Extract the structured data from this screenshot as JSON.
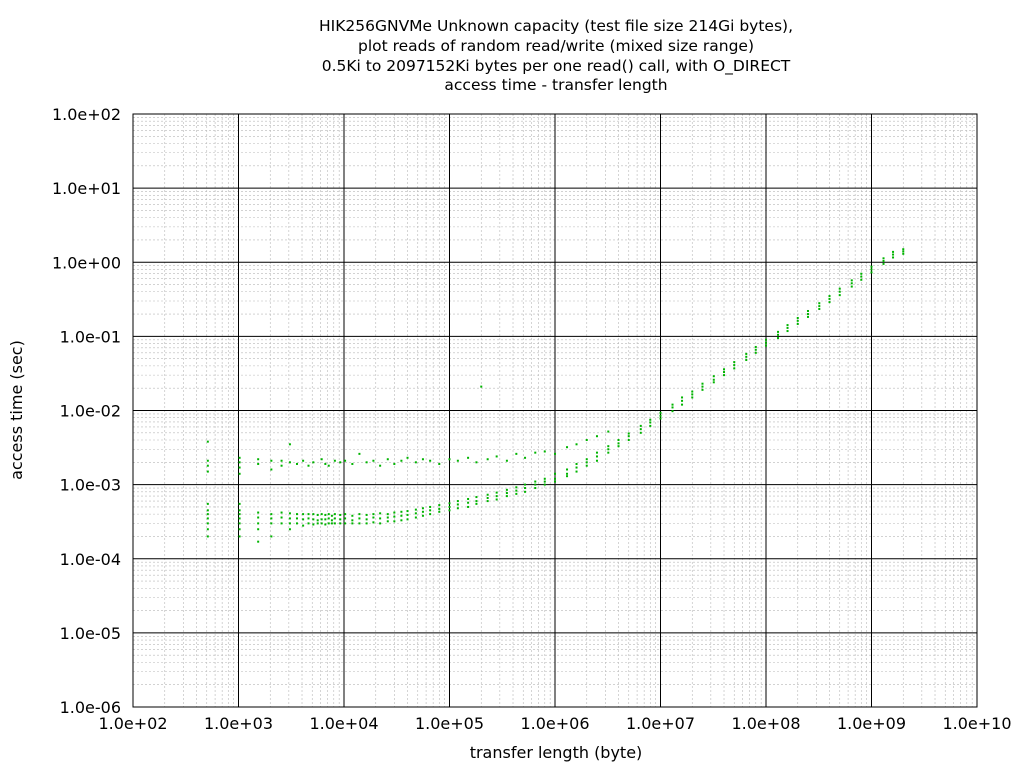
{
  "chart_data": {
    "type": "scatter",
    "title_lines": [
      "HIK256GNVMe Unknown capacity (test file size 214Gi bytes),",
      "plot reads of random read/write (mixed size range)",
      "0.5Ki to 2097152Ki bytes per one read() call, with O_DIRECT",
      "access time - transfer length"
    ],
    "xlabel": "transfer length (byte)",
    "ylabel": "access time (sec)",
    "x_scale": "log",
    "y_scale": "log",
    "xlim": [
      100,
      10000000000
    ],
    "ylim": [
      1e-06,
      100
    ],
    "x_tick_labels": [
      "1.0e+02",
      "1.0e+03",
      "1.0e+04",
      "1.0e+05",
      "1.0e+06",
      "1.0e+07",
      "1.0e+08",
      "1.0e+09",
      "1.0e+10"
    ],
    "y_tick_labels": [
      "1.0e-06",
      "1.0e-05",
      "1.0e-04",
      "1.0e-03",
      "1.0e-02",
      "1.0e-01",
      "1.0e+00",
      "1.0e+01",
      "1.0e+02"
    ],
    "grid": true,
    "marker_color": "#00b400",
    "series": [
      {
        "points": [
          [
            512,
            0.00045
          ],
          [
            512,
            0.0004
          ],
          [
            512,
            0.00035
          ],
          [
            512,
            0.0003
          ],
          [
            512,
            0.00025
          ],
          [
            512,
            0.0002
          ],
          [
            512,
            0.0021
          ],
          [
            512,
            0.0018
          ],
          [
            512,
            0.0015
          ],
          [
            512,
            0.0038
          ],
          [
            512,
            0.00055
          ],
          [
            1024,
            0.00045
          ],
          [
            1024,
            0.0004
          ],
          [
            1024,
            0.00035
          ],
          [
            1024,
            0.0003
          ],
          [
            1024,
            0.00025
          ],
          [
            1024,
            0.0002
          ],
          [
            1024,
            0.0023
          ],
          [
            1024,
            0.002
          ],
          [
            1024,
            0.0017
          ],
          [
            1024,
            0.0014
          ],
          [
            1024,
            0.00055
          ],
          [
            1536,
            0.00042
          ],
          [
            1536,
            0.00036
          ],
          [
            1536,
            0.0003
          ],
          [
            1536,
            0.00025
          ],
          [
            1536,
            0.0022
          ],
          [
            1536,
            0.0019
          ],
          [
            1536,
            0.00017
          ],
          [
            2048,
            0.0004
          ],
          [
            2048,
            0.00035
          ],
          [
            2048,
            0.0003
          ],
          [
            2048,
            0.0002
          ],
          [
            2048,
            0.0021
          ],
          [
            2048,
            0.0016
          ],
          [
            2560,
            0.00042
          ],
          [
            2560,
            0.00036
          ],
          [
            2560,
            0.0003
          ],
          [
            2560,
            0.0021
          ],
          [
            2560,
            0.0018
          ],
          [
            3072,
            0.00041
          ],
          [
            3072,
            0.00035
          ],
          [
            3072,
            0.0003
          ],
          [
            3072,
            0.00025
          ],
          [
            3072,
            0.0035
          ],
          [
            3072,
            0.002
          ],
          [
            3584,
            0.0004
          ],
          [
            3584,
            0.00035
          ],
          [
            3584,
            0.0003
          ],
          [
            3584,
            0.0019
          ],
          [
            4096,
            0.0004
          ],
          [
            4096,
            0.00034
          ],
          [
            4096,
            0.00028
          ],
          [
            4096,
            0.0021
          ],
          [
            4608,
            0.0004
          ],
          [
            4608,
            0.00035
          ],
          [
            4608,
            0.0003
          ],
          [
            4608,
            0.0018
          ],
          [
            5120,
            0.0004
          ],
          [
            5120,
            0.00034
          ],
          [
            5120,
            0.00029
          ],
          [
            5120,
            0.002
          ],
          [
            5632,
            0.00039
          ],
          [
            5632,
            0.00033
          ],
          [
            5632,
            0.0003
          ],
          [
            6144,
            0.0004
          ],
          [
            6144,
            0.00034
          ],
          [
            6144,
            0.0003
          ],
          [
            6144,
            0.0022
          ],
          [
            6656,
            0.00039
          ],
          [
            6656,
            0.00034
          ],
          [
            6656,
            0.00029
          ],
          [
            6656,
            0.0019
          ],
          [
            7168,
            0.0004
          ],
          [
            7168,
            0.00035
          ],
          [
            7168,
            0.0003
          ],
          [
            7168,
            0.0018
          ],
          [
            7680,
            0.00038
          ],
          [
            7680,
            0.00033
          ],
          [
            7680,
            0.0003
          ],
          [
            8192,
            0.0004
          ],
          [
            8192,
            0.00035
          ],
          [
            8192,
            0.0003
          ],
          [
            8192,
            0.0021
          ],
          [
            9216,
            0.00039
          ],
          [
            9216,
            0.00034
          ],
          [
            9216,
            0.0003
          ],
          [
            9216,
            0.002
          ],
          [
            10240,
            0.0004
          ],
          [
            10240,
            0.00035
          ],
          [
            10240,
            0.0003
          ],
          [
            10240,
            0.0021
          ],
          [
            12000,
            0.00038
          ],
          [
            12000,
            0.00033
          ],
          [
            12000,
            0.0003
          ],
          [
            12000,
            0.0019
          ],
          [
            14000,
            0.0004
          ],
          [
            14000,
            0.00035
          ],
          [
            14000,
            0.0003
          ],
          [
            14000,
            0.0026
          ],
          [
            16384,
            0.00039
          ],
          [
            16384,
            0.00034
          ],
          [
            16384,
            0.0003
          ],
          [
            16384,
            0.002
          ],
          [
            19000,
            0.0004
          ],
          [
            19000,
            0.00036
          ],
          [
            19000,
            0.00031
          ],
          [
            19000,
            0.0021
          ],
          [
            22000,
            0.00041
          ],
          [
            22000,
            0.00035
          ],
          [
            22000,
            0.0003
          ],
          [
            22000,
            0.0018
          ],
          [
            26000,
            0.0004
          ],
          [
            26000,
            0.00036
          ],
          [
            26000,
            0.00032
          ],
          [
            26000,
            0.0022
          ],
          [
            30000,
            0.00042
          ],
          [
            30000,
            0.00037
          ],
          [
            30000,
            0.00032
          ],
          [
            30000,
            0.0019
          ],
          [
            35000,
            0.00043
          ],
          [
            35000,
            0.00038
          ],
          [
            35000,
            0.00033
          ],
          [
            35000,
            0.0021
          ],
          [
            40000,
            0.00044
          ],
          [
            40000,
            0.00039
          ],
          [
            40000,
            0.00034
          ],
          [
            40000,
            0.0023
          ],
          [
            48000,
            0.00046
          ],
          [
            48000,
            0.00041
          ],
          [
            48000,
            0.00036
          ],
          [
            48000,
            0.002
          ],
          [
            56000,
            0.00048
          ],
          [
            56000,
            0.00043
          ],
          [
            56000,
            0.00038
          ],
          [
            56000,
            0.0022
          ],
          [
            65536,
            0.0005
          ],
          [
            65536,
            0.00045
          ],
          [
            65536,
            0.0004
          ],
          [
            65536,
            0.0021
          ],
          [
            80000,
            0.00053
          ],
          [
            80000,
            0.00047
          ],
          [
            80000,
            0.00043
          ],
          [
            80000,
            0.0019
          ],
          [
            100000,
            0.00056
          ],
          [
            100000,
            0.0005
          ],
          [
            100000,
            0.00045
          ],
          [
            100000,
            0.0022
          ],
          [
            120000,
            0.0006
          ],
          [
            120000,
            0.00054
          ],
          [
            120000,
            0.00048
          ],
          [
            120000,
            0.0021
          ],
          [
            150000,
            0.00064
          ],
          [
            150000,
            0.00057
          ],
          [
            150000,
            0.0005
          ],
          [
            150000,
            0.0023
          ],
          [
            180000,
            0.00068
          ],
          [
            180000,
            0.0006
          ],
          [
            180000,
            0.00055
          ],
          [
            180000,
            0.002
          ],
          [
            200000,
            0.021
          ],
          [
            230000,
            0.00073
          ],
          [
            230000,
            0.00066
          ],
          [
            230000,
            0.0006
          ],
          [
            230000,
            0.0022
          ],
          [
            280000,
            0.00078
          ],
          [
            280000,
            0.0007
          ],
          [
            280000,
            0.00063
          ],
          [
            280000,
            0.0024
          ],
          [
            350000,
            0.00085
          ],
          [
            350000,
            0.00077
          ],
          [
            350000,
            0.0007
          ],
          [
            350000,
            0.0021
          ],
          [
            430000,
            0.00092
          ],
          [
            430000,
            0.00083
          ],
          [
            430000,
            0.00075
          ],
          [
            430000,
            0.0026
          ],
          [
            520000,
            0.001
          ],
          [
            520000,
            0.0009
          ],
          [
            520000,
            0.0008
          ],
          [
            520000,
            0.0023
          ],
          [
            650000,
            0.0011
          ],
          [
            650000,
            0.001
          ],
          [
            650000,
            0.0009
          ],
          [
            650000,
            0.0027
          ],
          [
            800000,
            0.0012
          ],
          [
            800000,
            0.0011
          ],
          [
            800000,
            0.001
          ],
          [
            800000,
            0.0028
          ],
          [
            1000000,
            0.0014
          ],
          [
            1000000,
            0.0012
          ],
          [
            1000000,
            0.0011
          ],
          [
            1000000,
            0.0026
          ],
          [
            1300000,
            0.0016
          ],
          [
            1300000,
            0.0014
          ],
          [
            1300000,
            0.0013
          ],
          [
            1300000,
            0.0032
          ],
          [
            1600000,
            0.0019
          ],
          [
            1600000,
            0.0017
          ],
          [
            1600000,
            0.0015
          ],
          [
            1600000,
            0.0035
          ],
          [
            2000000,
            0.0022
          ],
          [
            2000000,
            0.002
          ],
          [
            2000000,
            0.0018
          ],
          [
            2000000,
            0.004
          ],
          [
            2500000,
            0.0027
          ],
          [
            2500000,
            0.0024
          ],
          [
            2500000,
            0.0021
          ],
          [
            2500000,
            0.0045
          ],
          [
            3200000,
            0.0033
          ],
          [
            3200000,
            0.003
          ],
          [
            3200000,
            0.0027
          ],
          [
            3200000,
            0.0052
          ],
          [
            4000000,
            0.004
          ],
          [
            4000000,
            0.0036
          ],
          [
            4000000,
            0.0033
          ],
          [
            5000000,
            0.0049
          ],
          [
            5000000,
            0.0045
          ],
          [
            5000000,
            0.004
          ],
          [
            6500000,
            0.0062
          ],
          [
            6500000,
            0.0056
          ],
          [
            6500000,
            0.005
          ],
          [
            8000000,
            0.0075
          ],
          [
            8000000,
            0.0069
          ],
          [
            8000000,
            0.0062
          ],
          [
            10000000,
            0.0093
          ],
          [
            10000000,
            0.0085
          ],
          [
            10000000,
            0.0078
          ],
          [
            13000000,
            0.012
          ],
          [
            13000000,
            0.011
          ],
          [
            13000000,
            0.0098
          ],
          [
            16000000,
            0.015
          ],
          [
            16000000,
            0.0135
          ],
          [
            16000000,
            0.012
          ],
          [
            20000000,
            0.018
          ],
          [
            20000000,
            0.0165
          ],
          [
            20000000,
            0.015
          ],
          [
            25000000,
            0.023
          ],
          [
            25000000,
            0.021
          ],
          [
            25000000,
            0.019
          ],
          [
            32000000,
            0.029
          ],
          [
            32000000,
            0.026
          ],
          [
            32000000,
            0.024
          ],
          [
            40000000,
            0.036
          ],
          [
            40000000,
            0.033
          ],
          [
            40000000,
            0.03
          ],
          [
            50000000,
            0.045
          ],
          [
            50000000,
            0.041
          ],
          [
            50000000,
            0.037
          ],
          [
            65000000,
            0.058
          ],
          [
            65000000,
            0.053
          ],
          [
            65000000,
            0.048
          ],
          [
            80000000,
            0.072
          ],
          [
            80000000,
            0.066
          ],
          [
            80000000,
            0.06
          ],
          [
            100000000,
            0.09
          ],
          [
            100000000,
            0.082
          ],
          [
            100000000,
            0.075
          ],
          [
            130000000,
            0.115
          ],
          [
            130000000,
            0.105
          ],
          [
            130000000,
            0.095
          ],
          [
            160000000,
            0.142
          ],
          [
            160000000,
            0.13
          ],
          [
            160000000,
            0.118
          ],
          [
            200000000,
            0.177
          ],
          [
            200000000,
            0.162
          ],
          [
            200000000,
            0.147
          ],
          [
            250000000,
            0.22
          ],
          [
            250000000,
            0.2
          ],
          [
            250000000,
            0.183
          ],
          [
            320000000,
            0.28
          ],
          [
            320000000,
            0.256
          ],
          [
            320000000,
            0.234
          ],
          [
            400000000,
            0.35
          ],
          [
            400000000,
            0.32
          ],
          [
            400000000,
            0.29
          ],
          [
            500000000,
            0.44
          ],
          [
            500000000,
            0.4
          ],
          [
            500000000,
            0.36
          ],
          [
            650000000,
            0.57
          ],
          [
            650000000,
            0.52
          ],
          [
            650000000,
            0.47
          ],
          [
            800000000,
            0.7
          ],
          [
            800000000,
            0.64
          ],
          [
            800000000,
            0.58
          ],
          [
            1000000000,
            0.87
          ],
          [
            1000000000,
            0.8
          ],
          [
            1000000000,
            0.73
          ],
          [
            1300000000,
            1.13
          ],
          [
            1300000000,
            1.04
          ],
          [
            1300000000,
            0.95
          ],
          [
            1600000000,
            1.38
          ],
          [
            1600000000,
            1.27
          ],
          [
            1600000000,
            1.16
          ],
          [
            2000000000,
            1.5
          ],
          [
            2000000000,
            1.4
          ],
          [
            2000000000,
            1.3
          ]
        ]
      }
    ]
  }
}
